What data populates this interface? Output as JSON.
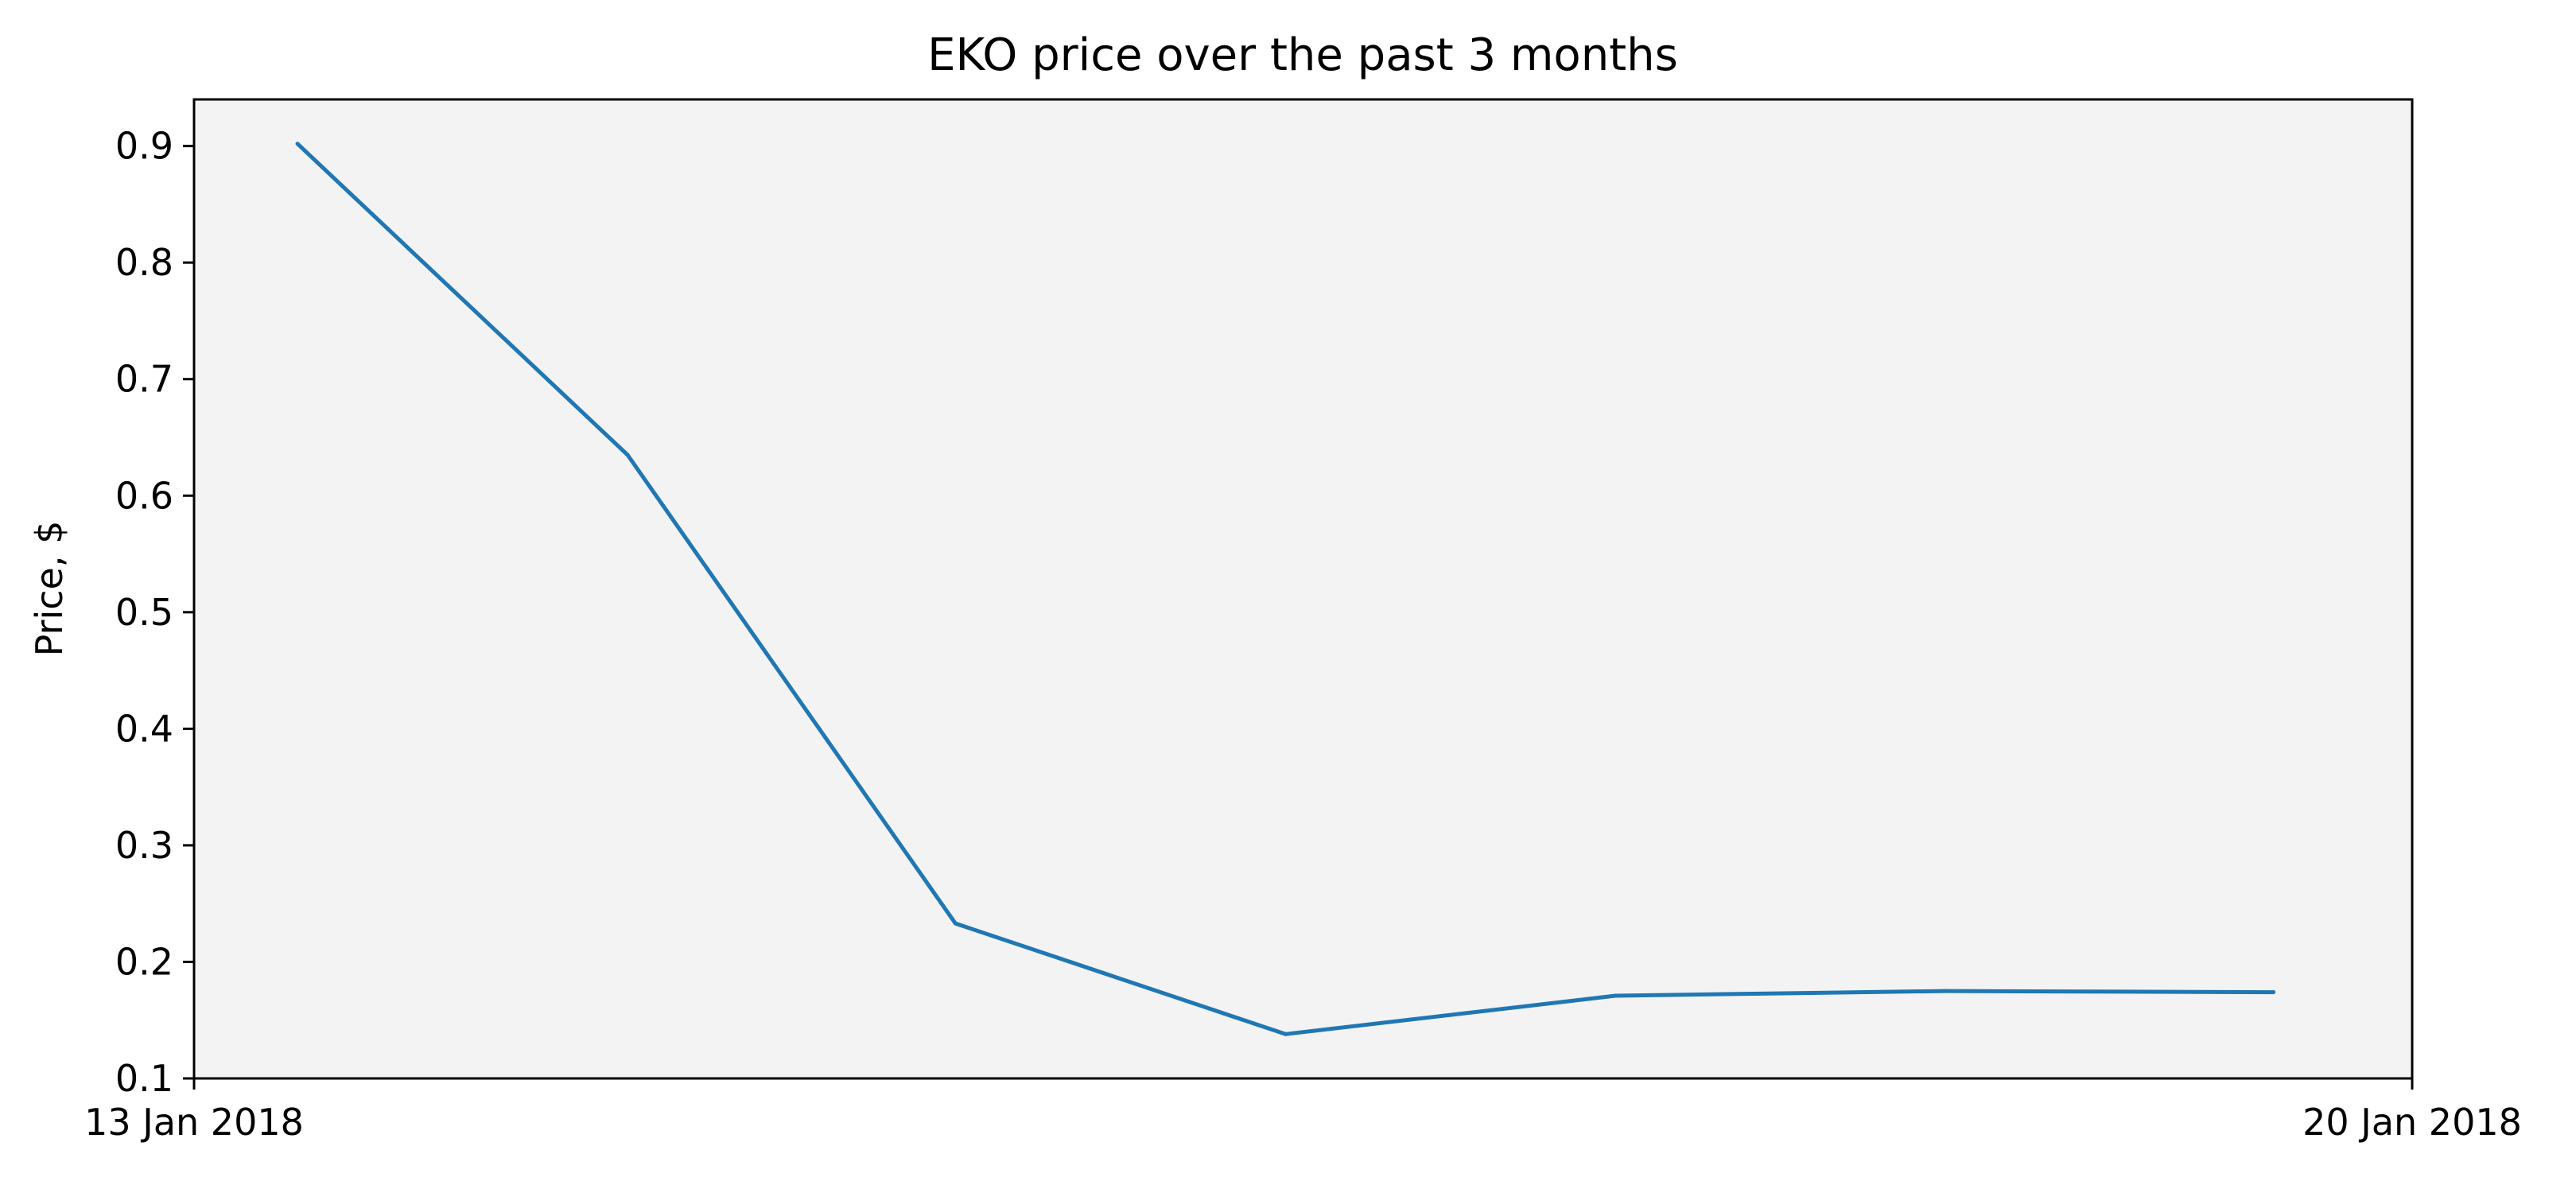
{
  "chart_data": {
    "type": "line",
    "title": "EKO price over the past 3 months",
    "xlabel": "",
    "ylabel": "Price, $",
    "x_tick_labels": [
      "13 Jan 2018",
      "20 Jan 2018"
    ],
    "xlim": [
      "2018-01-13",
      "2018-01-20"
    ],
    "ylim": [
      0.1,
      0.94
    ],
    "y_ticks": [
      0.1,
      0.2,
      0.3,
      0.4,
      0.5,
      0.6,
      0.7,
      0.8,
      0.9
    ],
    "y_tick_labels": [
      "0.1",
      "0.2",
      "0.3",
      "0.4",
      "0.5",
      "0.6",
      "0.7",
      "0.8",
      "0.9"
    ],
    "grid": false,
    "legend": "none",
    "series": [
      {
        "color": "#1f77b4",
        "x": [
          "2018-01-13T07:50",
          "2018-01-14T08:50",
          "2018-01-15T09:40",
          "2018-01-16T10:40",
          "2018-01-17T11:40",
          "2018-01-18T12:40",
          "2018-01-19T13:30"
        ],
        "values": [
          0.902,
          0.635,
          0.233,
          0.138,
          0.171,
          0.175,
          0.174
        ]
      }
    ],
    "colors": {
      "plot_background": "#f3f3f3",
      "line": "#1f77b4",
      "axes": "#000000"
    }
  }
}
